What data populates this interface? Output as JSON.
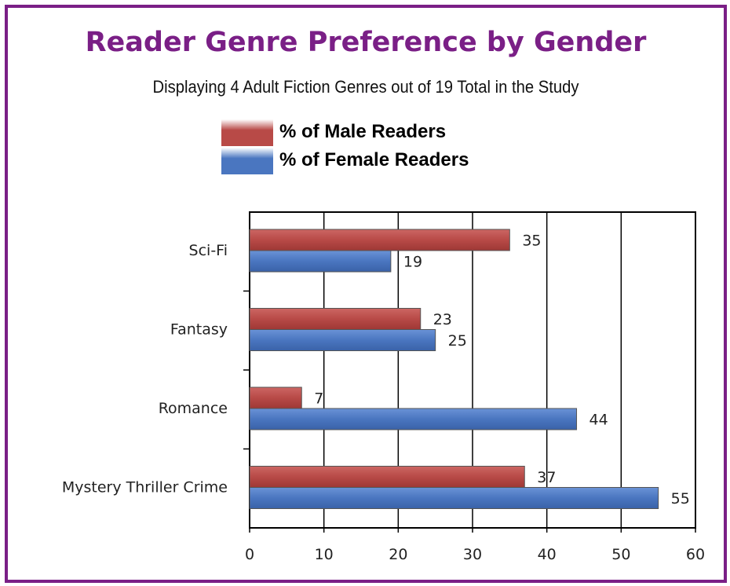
{
  "chart_data": {
    "type": "bar",
    "orientation": "horizontal",
    "title": "Reader Genre Preference by Gender",
    "subtitle": "Displaying 4 Adult Fiction Genres out of 19 Total in the Study",
    "categories": [
      "Sci-Fi",
      "Fantasy",
      "Romance",
      "Mystery Thriller Crime"
    ],
    "series": [
      {
        "name": "% of Male Readers",
        "values": [
          35,
          23,
          7,
          37
        ],
        "color": "#b84a47"
      },
      {
        "name": "% of Female Readers",
        "values": [
          19,
          25,
          44,
          55
        ],
        "color": "#4a76c0"
      }
    ],
    "xlim": [
      0,
      60
    ],
    "xticks": [
      0,
      10,
      20,
      30,
      40,
      50,
      60
    ],
    "grid": "vertical",
    "legend": "top-center"
  }
}
